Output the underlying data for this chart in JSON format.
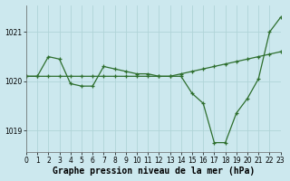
{
  "bg_color": "#cce8ee",
  "grid_color": "#b0d4d8",
  "line_color": "#2d6e2d",
  "line1_x": [
    0,
    1,
    2,
    3,
    4,
    5,
    6,
    7,
    8,
    9,
    10,
    11,
    12,
    13,
    14,
    15,
    16,
    17,
    18,
    19,
    20,
    21,
    22,
    23
  ],
  "line1_y": [
    1020.1,
    1020.1,
    1020.1,
    1020.1,
    1020.1,
    1020.1,
    1020.1,
    1020.1,
    1020.1,
    1020.1,
    1020.1,
    1020.1,
    1020.1,
    1020.1,
    1020.15,
    1020.2,
    1020.25,
    1020.3,
    1020.35,
    1020.4,
    1020.45,
    1020.5,
    1020.55,
    1020.6
  ],
  "line2_x": [
    0,
    1,
    2,
    3,
    4,
    5,
    6,
    7,
    8,
    9,
    10,
    11,
    12,
    13,
    14,
    15,
    16,
    17,
    18,
    19,
    20,
    21,
    22,
    23
  ],
  "line2_y": [
    1020.1,
    1020.1,
    1020.5,
    1020.45,
    1019.95,
    1019.9,
    1019.9,
    1020.3,
    1020.25,
    1020.2,
    1020.15,
    1020.15,
    1020.1,
    1020.1,
    1020.1,
    1019.75,
    1019.55,
    1018.75,
    1018.75,
    1019.35,
    1019.65,
    1020.05,
    1021.0,
    1021.3
  ],
  "xlim": [
    0,
    23
  ],
  "ylim": [
    1018.55,
    1021.55
  ],
  "yticks": [
    1019,
    1020,
    1021
  ],
  "xticks": [
    0,
    1,
    2,
    3,
    4,
    5,
    6,
    7,
    8,
    9,
    10,
    11,
    12,
    13,
    14,
    15,
    16,
    17,
    18,
    19,
    20,
    21,
    22,
    23
  ],
  "xlabel": "Graphe pression niveau de la mer (hPa)",
  "tick_fontsize": 5.5,
  "label_fontsize": 7.0
}
